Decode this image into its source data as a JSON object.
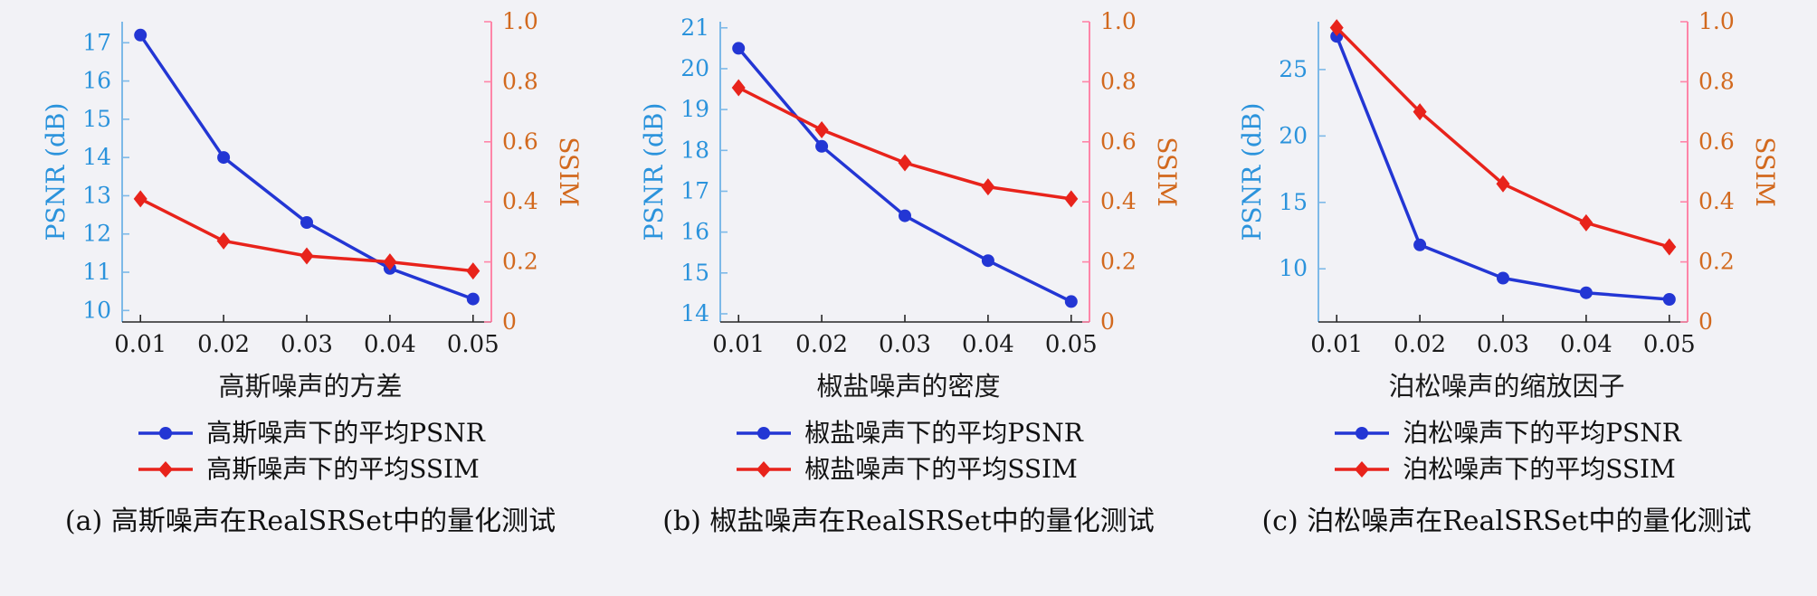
{
  "page": {
    "background": "#f2f2f6"
  },
  "colors": {
    "psnr_line": "#2336d4",
    "ssim_line": "#e8231b",
    "left_axis_text": "#2b93dc",
    "left_spine": "#7db9e8",
    "right_axis_text": "#d2691e",
    "right_spine": "#ff85a8",
    "x_axis_text": "#1a1a1a",
    "bottom_spine": "#262626"
  },
  "chart_data": [
    {
      "type": "line",
      "x": [
        0.01,
        0.02,
        0.03,
        0.04,
        0.05
      ],
      "x_tick_labels": [
        "0.01",
        "0.02",
        "0.03",
        "0.04",
        "0.05"
      ],
      "xlabel": "高斯噪声的方差",
      "ylabel_left": "PSNR (dB)",
      "ylabel_right": "SSIM",
      "ylim_left": [
        9.7,
        17.55
      ],
      "yticks_left": [
        10,
        11,
        12,
        13,
        14,
        15,
        16,
        17
      ],
      "ylim_right": [
        0,
        1
      ],
      "yticks_right": [
        0,
        0.2,
        0.4,
        0.6,
        0.8,
        1
      ],
      "grid": false,
      "legend_position": "below",
      "series": [
        {
          "name": "高斯噪声下的平均PSNR",
          "axis": "left",
          "marker": "circle",
          "values": [
            17.2,
            14.0,
            12.3,
            11.1,
            10.3
          ]
        },
        {
          "name": "高斯噪声下的平均SSIM",
          "axis": "right",
          "marker": "diamond",
          "values": [
            0.41,
            0.27,
            0.22,
            0.2,
            0.17
          ]
        }
      ],
      "caption": "(a) 高斯噪声在RealSRSet中的量化测试"
    },
    {
      "type": "line",
      "x": [
        0.01,
        0.02,
        0.03,
        0.04,
        0.05
      ],
      "x_tick_labels": [
        "0.01",
        "0.02",
        "0.03",
        "0.04",
        "0.05"
      ],
      "xlabel": "椒盐噪声的密度",
      "ylabel_left": "PSNR (dB)",
      "ylabel_right": "SSIM",
      "ylim_left": [
        13.8,
        21.15
      ],
      "yticks_left": [
        14,
        15,
        16,
        17,
        18,
        19,
        20,
        21
      ],
      "ylim_right": [
        0,
        1
      ],
      "yticks_right": [
        0,
        0.2,
        0.4,
        0.6,
        0.8,
        1
      ],
      "grid": false,
      "legend_position": "below",
      "series": [
        {
          "name": "椒盐噪声下的平均PSNR",
          "axis": "left",
          "marker": "circle",
          "values": [
            20.5,
            18.1,
            16.4,
            15.3,
            14.3
          ]
        },
        {
          "name": "椒盐噪声下的平均SSIM",
          "axis": "right",
          "marker": "diamond",
          "values": [
            0.78,
            0.64,
            0.53,
            0.45,
            0.41
          ]
        }
      ],
      "caption": "(b) 椒盐噪声在RealSRSet中的量化测试"
    },
    {
      "type": "line",
      "x": [
        0.01,
        0.02,
        0.03,
        0.04,
        0.05
      ],
      "x_tick_labels": [
        "0.01",
        "0.02",
        "0.03",
        "0.04",
        "0.05"
      ],
      "xlabel": "泊松噪声的缩放因子",
      "ylabel_left": "PSNR (dB)",
      "ylabel_right": "SSIM",
      "ylim_left": [
        6.0,
        28.6
      ],
      "yticks_left": [
        10,
        15,
        20,
        25
      ],
      "ylim_right": [
        0,
        1
      ],
      "yticks_right": [
        0,
        0.2,
        0.4,
        0.6,
        0.8,
        1
      ],
      "grid": false,
      "legend_position": "below",
      "series": [
        {
          "name": "泊松噪声下的平均PSNR",
          "axis": "left",
          "marker": "circle",
          "values": [
            27.5,
            11.8,
            9.3,
            8.2,
            7.7
          ]
        },
        {
          "name": "泊松噪声下的平均SSIM",
          "axis": "right",
          "marker": "diamond",
          "values": [
            0.98,
            0.7,
            0.46,
            0.33,
            0.25
          ]
        }
      ],
      "caption": "(c) 泊松噪声在RealSRSet中的量化测试"
    }
  ]
}
